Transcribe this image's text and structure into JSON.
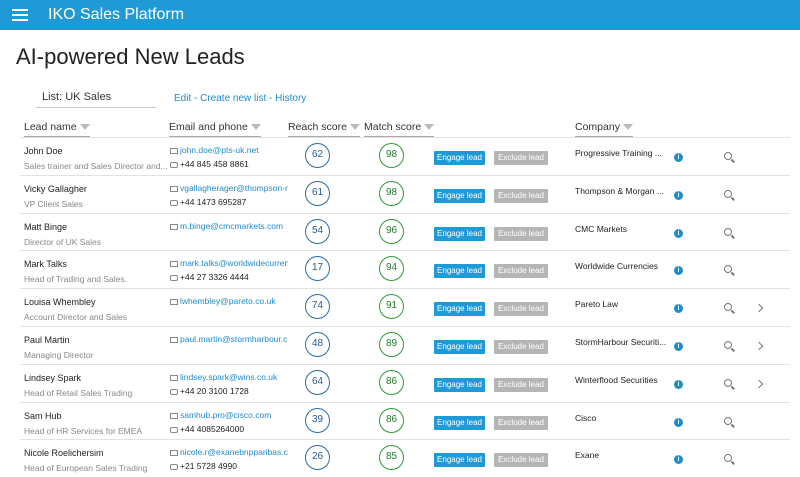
{
  "header": {
    "title": "IKO Sales Platform"
  },
  "page": {
    "title": "AI-powered New Leads",
    "list": "List: UK Sales",
    "links": [
      "Edit",
      "Create new list",
      "History"
    ],
    "separator": " - "
  },
  "columns": [
    "Lead name",
    "Email and phone",
    "Reach score",
    "Match score",
    "Company"
  ],
  "buttons": {
    "engage": "Engage lead",
    "exclude": "Exclude lead"
  },
  "rows": [
    {
      "name": "John Doe",
      "role": "Sales trainer and Sales Director and...",
      "email": "john.doe@pts-uk.net",
      "phone": "+44 845 458 8861",
      "reach": 62,
      "match": 98,
      "company": "Progressive Training ...",
      "more": false
    },
    {
      "name": "Vicky Gallagher",
      "role": "VP Client Sales",
      "email": "vgallagherager@thompson-m",
      "phone": "+44 1473 695287",
      "reach": 61,
      "match": 98,
      "company": "Thompson & Morgan ...",
      "more": false
    },
    {
      "name": "Matt Binge",
      "role": "Director of UK Sales",
      "email": "m.binge@cmcmarkets.com",
      "phone": null,
      "reach": 54,
      "match": 96,
      "company": "CMC Markets",
      "more": false
    },
    {
      "name": "Mark Talks",
      "role": "Head of Trading and Sales.",
      "email": "mark.talks@worldwidecurren",
      "phone": "+44 27 3326 4444",
      "reach": 17,
      "match": 94,
      "company": "Worldwide Currencies",
      "more": false
    },
    {
      "name": "Louisa Whembley",
      "role": "Account Director and Sales",
      "email": "lwhembley@pareto.co.uk",
      "phone": null,
      "reach": 74,
      "match": 91,
      "company": "Pareto Law",
      "more": true
    },
    {
      "name": "Paul Martin",
      "role": "Managing Director",
      "email": "paul.martin@stormharbour.c",
      "phone": null,
      "reach": 48,
      "match": 89,
      "company": "StormHarbour Securiti...",
      "more": true
    },
    {
      "name": "Lindsey Spark",
      "role": "Head of Retail Sales Trading",
      "email": "lindsey.spark@wins.co.uk",
      "phone": "+44 20 3100 1728",
      "reach": 64,
      "match": 86,
      "company": "Winterflood Securities",
      "more": true
    },
    {
      "name": "Sam Hub",
      "role": "Head of HR Services for EMEA",
      "email": "samhub.pro@cisco.com",
      "phone": "+44 4085264000",
      "reach": 39,
      "match": 86,
      "company": "Cisco",
      "more": false
    },
    {
      "name": "Nicole Roelichersim",
      "role": "Head of European Sales Trading",
      "email": "nicole.r@exanebnpparibas.cc",
      "phone": "+21 5728 4990",
      "reach": 26,
      "match": 85,
      "company": "Exane",
      "more": false
    }
  ]
}
